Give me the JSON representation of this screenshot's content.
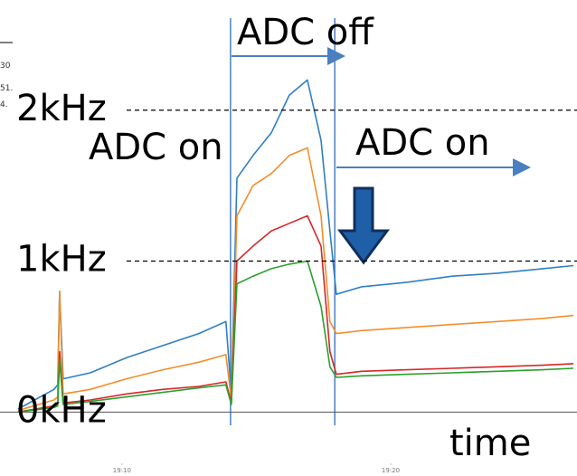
{
  "chart_data": {
    "type": "line",
    "x": [
      6.13,
      7.47,
      7.61,
      7.68,
      7.81,
      8.82,
      10.17,
      11.52,
      12.86,
      13.87,
      14.07,
      14.28,
      14.88,
      15.56,
      16.23,
      16.9,
      17.41,
      17.74,
      17.98,
      18.92,
      20.61,
      22.29,
      23.97,
      25.66,
      26.8
    ],
    "series": [
      {
        "color": "#2f7fc1",
        "values": [
          0.02,
          0.15,
          0.18,
          0.8,
          0.22,
          0.26,
          0.36,
          0.44,
          0.52,
          0.6,
          0.12,
          1.55,
          1.7,
          1.85,
          2.1,
          2.2,
          1.8,
          1.2,
          0.78,
          0.83,
          0.86,
          0.9,
          0.92,
          0.95,
          0.97
        ]
      },
      {
        "color": "#f28e2b",
        "values": [
          0.01,
          0.08,
          0.1,
          0.8,
          0.12,
          0.15,
          0.22,
          0.28,
          0.33,
          0.38,
          0.08,
          1.3,
          1.5,
          1.58,
          1.7,
          1.75,
          1.3,
          0.6,
          0.52,
          0.54,
          0.56,
          0.58,
          0.6,
          0.62,
          0.64
        ]
      },
      {
        "color": "#d62728",
        "values": [
          0,
          0.04,
          0.05,
          0.4,
          0.06,
          0.08,
          0.12,
          0.15,
          0.17,
          0.2,
          0.06,
          1.0,
          1.1,
          1.2,
          1.25,
          1.3,
          1.1,
          0.4,
          0.25,
          0.27,
          0.28,
          0.29,
          0.3,
          0.31,
          0.32
        ]
      },
      {
        "color": "#2ca02c",
        "values": [
          0,
          0.03,
          0.04,
          0.35,
          0.05,
          0.07,
          0.1,
          0.13,
          0.16,
          0.18,
          0.05,
          0.85,
          0.9,
          0.95,
          0.98,
          1.0,
          0.7,
          0.3,
          0.23,
          0.24,
          0.25,
          0.26,
          0.27,
          0.28,
          0.29
        ]
      }
    ],
    "xlim": [
      6,
      26.8
    ],
    "xticks": [
      {
        "value": 10,
        "label": "19:10"
      },
      {
        "value": 20,
        "label": "19:20"
      }
    ],
    "ylim": [
      -0.1,
      2.7
    ],
    "yticks": [
      {
        "value": 0,
        "label": "0kHz"
      },
      {
        "value": 1,
        "label": "1kHz"
      },
      {
        "value": 2,
        "label": "2kHz"
      }
    ],
    "grid": true,
    "vlines": [
      14.04,
      17.92
    ],
    "annotations": [
      "ADC off",
      "ADC on",
      "ADC on",
      "time"
    ],
    "cropped_texts": [
      "30",
      "51.",
      "4."
    ]
  }
}
